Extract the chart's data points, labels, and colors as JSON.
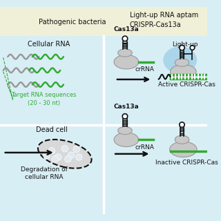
{
  "bg_light_blue": "#d8eef5",
  "header_bg": "#f0f0d8",
  "white": "#ffffff",
  "gray_body": "#c8c8c8",
  "gray_body_edge": "#999999",
  "gray_ellipse": "#d0d0d0",
  "black": "#111111",
  "green": "#33aa33",
  "blue_aptamer": "#a0d0e8",
  "dot_fill": "#e0e8f0",
  "cell_fill": "#d8d8d8",
  "title_left": "Pathogenic bacteria",
  "title_right": "Light-up RNA aptam\nCRISPR-Cas13a",
  "label_cellular": "Cellular RNA",
  "label_target": "Target RNA sequences\n(20 - 30 nt)",
  "label_lightup": "Light-up",
  "label_cas13a": "Cas13a",
  "label_crRNA": "crRNA",
  "label_active": "Active CRISPR-Cas",
  "label_dead": "Dead cell",
  "label_degradation": "Degradation of\ncellular RNA",
  "label_inactive": "Inactive CRISPR-Cas"
}
